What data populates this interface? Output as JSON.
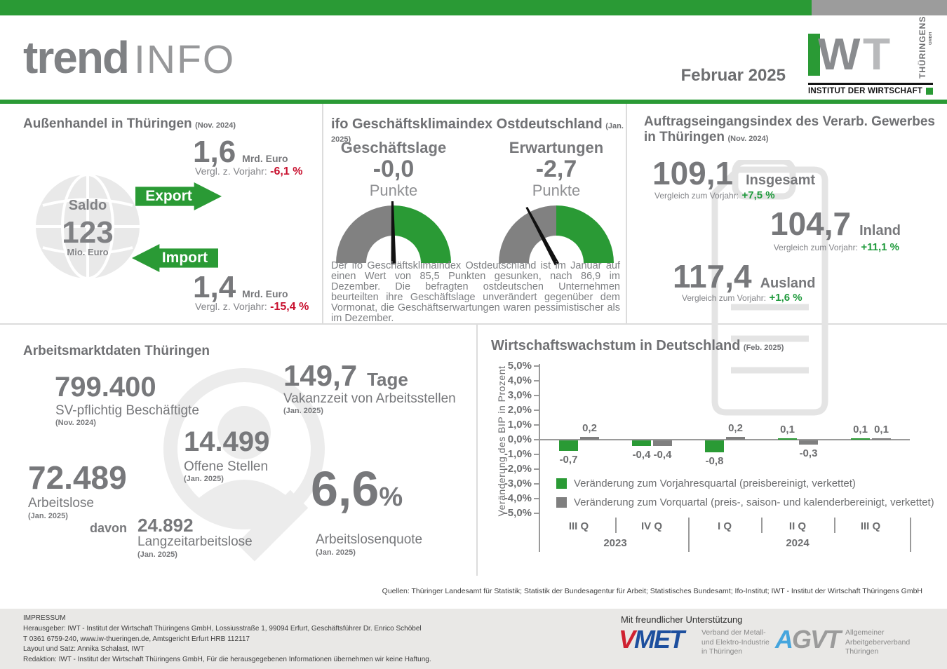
{
  "colors": {
    "green": "#2a9a35",
    "red": "#c8102e",
    "bar_gray": "#7f7f7f",
    "text_gray": "#77787b"
  },
  "header": {
    "logo_trend": "trend",
    "logo_info": "INFO",
    "issue_date": "Februar 2025",
    "iwt": {
      "letter_w": "W",
      "letter_t": "T",
      "vertical": "THÜRINGENS",
      "gmbh": "GMBH",
      "caption": "INSTITUT DER WIRTSCHAFT"
    }
  },
  "panels": {
    "aussenhandel": {
      "title": "Außenhandel in Thüringen",
      "title_date": "(Nov. 2024)",
      "saldo_label": "Saldo",
      "saldo_value": "123",
      "saldo_unit": "Mio. Euro",
      "export": {
        "arrow_label": "Export",
        "value": "1,6",
        "unit": "Mrd. Euro",
        "compare_label": "Vergl. z. Vorjahr:",
        "compare_value": "-6,1 %"
      },
      "import": {
        "arrow_label": "Import",
        "value": "1,4",
        "unit": "Mrd. Euro",
        "compare_label": "Vergl. z. Vorjahr:",
        "compare_value": "-15,4 %"
      }
    },
    "ifo": {
      "title": "ifo Geschäftsklimaindex Ostdeutschland",
      "title_date": "(Jan. 2025)",
      "gauges": [
        {
          "label": "Geschäftslage",
          "value": "-0,0",
          "unit": "Punkte",
          "needle_deg": -1
        },
        {
          "label": "Erwartungen",
          "value": "-2,7",
          "unit": "Punkte",
          "needle_deg": -28
        }
      ],
      "body": "Der ifo Geschäftsklimaindex Ostdeutschland ist im Januar auf einen Wert von 85,5 Punkten gesunken, nach 86,9 im Dezember. Die befragten ostdeutschen Unternehmen beurteilten ihre Geschäftslage unverändert gegenüber dem Vormonat, die Geschäftserwartungen waren pessimistischer als im Dezember."
    },
    "auftragseingang": {
      "title_line1": "Auftragseingangsindex des Verarb. Gewerbes",
      "title_line2": "in Thüringen",
      "title_date": "(Nov. 2024)",
      "items": [
        {
          "value": "109,1",
          "label": "Insgesamt",
          "compare_label": "Vergleich zum Vorjahr:",
          "compare_value": "+7,5 %"
        },
        {
          "value": "104,7",
          "label": "Inland",
          "compare_label": "Vergleich zum Vorjahr:",
          "compare_value": "+11,1 %"
        },
        {
          "value": "117,4",
          "label": "Ausland",
          "compare_label": "Vergleich zum Vorjahr:",
          "compare_value": "+1,6 %"
        }
      ]
    },
    "arbeitsmarkt": {
      "title": "Arbeitsmarktdaten Thüringen",
      "beschaeftigte": {
        "value": "799.400",
        "label": "SV-pflichtig Beschäftigte",
        "date": "(Nov. 2024)"
      },
      "vakanzzeit": {
        "value": "149,7",
        "unit": "Tage",
        "label": "Vakanzzeit von Arbeitsstellen",
        "date": "(Jan. 2025)"
      },
      "offene_stellen": {
        "value": "14.499",
        "label": "Offene Stellen",
        "date": "(Jan. 2025)"
      },
      "arbeitslose": {
        "value": "72.489",
        "label": "Arbeitslose",
        "date": "(Jan. 2025)"
      },
      "langzeit": {
        "prefix": "davon",
        "value": "24.892",
        "label": "Langzeitarbeitslose",
        "date": "(Jan. 2025)"
      },
      "quote": {
        "value": "6,6",
        "unit": "%",
        "label": "Arbeitslosenquote",
        "date": "(Jan. 2025)"
      }
    },
    "wachstum": {
      "title": "Wirtschaftswachstum in Deutschland",
      "title_date": "(Feb. 2025)"
    }
  },
  "chart_data": {
    "type": "bar",
    "title": "Wirtschaftswachstum in Deutschland (Feb. 2025)",
    "ylabel": "Veränderung des BIP in Prozent",
    "ylim": [
      -5,
      5
    ],
    "ytick_step": 1,
    "grid": false,
    "legend_position": "inside-bottom-left",
    "categories": [
      "III Q",
      "IV Q",
      "I Q",
      "II Q",
      "III Q"
    ],
    "year_groups": [
      {
        "label": "2023",
        "span": [
          0,
          1
        ]
      },
      {
        "label": "2024",
        "span": [
          2,
          4
        ]
      }
    ],
    "series": [
      {
        "name": "Veränderung zum Vorjahresquartal (preisbereinigt, verkettet)",
        "color": "#2a9a35",
        "values": [
          -0.7,
          -0.4,
          -0.8,
          0.1,
          0.1
        ],
        "labels": [
          "-0,7",
          "-0,4",
          "-0,8",
          "0,1",
          "0,1"
        ]
      },
      {
        "name": "Veränderung zum Vorquartal (preis-, saison- und kalenderbereinigt, verkettet)",
        "color": "#7f7f7f",
        "values": [
          0.2,
          -0.4,
          0.2,
          -0.3,
          0.1
        ],
        "labels": [
          "0,2",
          "-0,4",
          "0,2",
          "-0,3",
          "0,1"
        ]
      }
    ]
  },
  "sources": "Quellen: Thüringer Landesamt für Statistik; Statistik der Bundesagentur für Arbeit; Statistisches Bundesamt; Ifo-Institut; IWT - Institut der Wirtschaft Thüringens GmbH",
  "footer": {
    "impressum_title": "IMPRESSUM",
    "lines": [
      "Herausgeber: IWT - Institut der Wirtschaft Thüringens GmbH, Lossiusstraße 1, 99094 Erfurt, Geschäftsführer Dr. Enrico Schöbel",
      "T 0361 6759-240, www.iw-thueringen.de, Amtsgericht Erfurt HRB 112117",
      "Layout und Satz: Annika Schalast, IWT",
      "Redaktion: IWT - Institut der Wirtschaft Thüringens GmbH, Für die herausgegebenen Informationen übernehmen wir keine Haftung."
    ],
    "support_title": "Mit freundlicher Unterstützung",
    "vmet": {
      "part1": "V",
      "part2": "MET",
      "desc_lines": [
        "Verband der Metall-",
        "und Elektro-Industrie",
        "in Thüringen"
      ]
    },
    "agvt": {
      "part1": "A",
      "part2": "GVT",
      "desc_lines": [
        "Allgemeiner",
        "Arbeitgeberverband",
        "Thüringen"
      ]
    }
  }
}
